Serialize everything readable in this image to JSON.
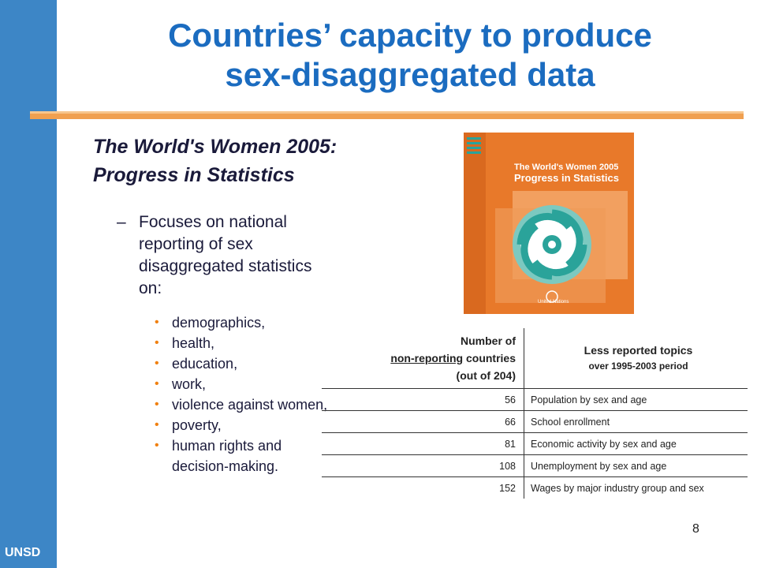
{
  "slide": {
    "title_line1": "Countries’ capacity to produce",
    "title_line2": "sex-disaggregated data",
    "subtitle_line1": "The World's Women 2005:",
    "subtitle_line2": "Progress in Statistics",
    "bullet_dash": "–",
    "bullet_text": "Focuses on national reporting of sex disaggregated statistics on:",
    "topics": [
      "demographics,",
      "health,",
      "education,",
      "work,",
      "violence against women,",
      "poverty,",
      "human rights and decision-making."
    ],
    "topic_bullet": "•",
    "sidebar_label": "UNSD",
    "page_number": "8"
  },
  "cover": {
    "title_line1": "The World's Women 2005",
    "title_line2": "Progress in Statistics",
    "publisher": "United Nations"
  },
  "table": {
    "col1_line1": "Number of",
    "col1_line2": "non-reporting",
    "col1_line2b": " countries",
    "col1_line3": "(out of 204)",
    "col2_line1": "Less reported topics",
    "col2_line2": "over 1995-2003 period",
    "rows": [
      {
        "count": "56",
        "topic": "Population by sex and age"
      },
      {
        "count": "66",
        "topic": "School enrollment"
      },
      {
        "count": "81",
        "topic": "Economic activity by sex and age"
      },
      {
        "count": "108",
        "topic": "Unemployment by sex and age"
      },
      {
        "count": "152",
        "topic": "Wages by major industry group and sex"
      }
    ]
  },
  "colors": {
    "sidebar": "#3d86c6",
    "title": "#1b6cc0",
    "accent": "#f0a050",
    "cover": "#e8792a",
    "bullet": "#f08010"
  }
}
